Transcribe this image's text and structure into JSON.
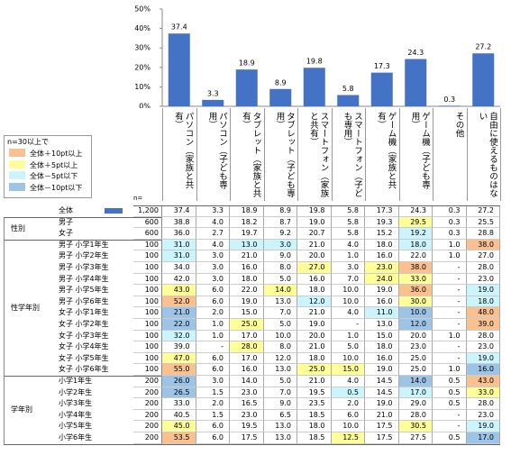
{
  "chart_data": {
    "type": "bar",
    "categories": [
      "パソコン（家族と共有）",
      "パソコン（子ども専用）",
      "タブレット（家族と共有）",
      "タブレット（子ども専用）",
      "スマートフォン（家族と共有）",
      "スマートフォン（子ども専用）",
      "ゲーム機（家族と共有）",
      "ゲーム機（子ども専用）",
      "その他",
      "自由に使えるものはない"
    ],
    "values": [
      37.4,
      3.3,
      18.9,
      8.9,
      19.8,
      5.8,
      17.3,
      24.3,
      0.3,
      27.2
    ],
    "color": "#4472c4",
    "ylim": [
      0,
      50
    ],
    "yticks": [
      {
        "value": 0,
        "label": "0%"
      },
      {
        "value": 10,
        "label": "10%"
      },
      {
        "value": 20,
        "label": "20%"
      },
      {
        "value": 30,
        "label": "30%"
      },
      {
        "value": 40,
        "label": "40%"
      },
      {
        "value": 50,
        "label": "50%"
      }
    ]
  },
  "legend": {
    "title": "n=30以上で",
    "items": [
      {
        "label": "全体＋10pt以上",
        "color": "#fac090"
      },
      {
        "label": "全体＋5pt以上",
        "color": "#ffff99"
      },
      {
        "label": "全体－5pt以下",
        "color": "#ccf4fc"
      },
      {
        "label": "全体－10pt以下",
        "color": "#9dc3e6"
      }
    ]
  },
  "table": {
    "n_header": "n=",
    "total": {
      "label": "全体",
      "n": "1,200",
      "cells": [
        "37.4",
        "3.3",
        "18.9",
        "8.9",
        "19.8",
        "5.8",
        "17.3",
        "24.3",
        "0.3",
        "27.2"
      ]
    },
    "groups": [
      {
        "name": "性別",
        "rows": [
          {
            "label": "男子",
            "n": "600",
            "cells": [
              "38.8",
              "4.0",
              "18.2",
              "8.7",
              "19.0",
              "5.8",
              "19.3",
              "29.5",
              "0.3",
              "25.5"
            ]
          },
          {
            "label": "女子",
            "n": "600",
            "cells": [
              "36.0",
              "2.7",
              "19.7",
              "9.2",
              "20.7",
              "5.8",
              "15.2",
              "19.2",
              "0.3",
              "28.8"
            ]
          }
        ]
      },
      {
        "name": "性学年別",
        "rows": [
          {
            "label": "男子 小学1年生",
            "n": "100",
            "cells": [
              "31.0",
              "4.0",
              "13.0",
              "3.0",
              "21.0",
              "4.0",
              "18.0",
              "18.0",
              "1.0",
              "38.0"
            ]
          },
          {
            "label": "男子 小学2年生",
            "n": "100",
            "cells": [
              "31.0",
              "3.0",
              "21.0",
              "9.0",
              "20.0",
              "1.0",
              "16.0",
              "22.0",
              "1.0",
              "27.0"
            ]
          },
          {
            "label": "男子 小学3年生",
            "n": "100",
            "cells": [
              "34.0",
              "3.0",
              "16.0",
              "8.0",
              "27.0",
              "3.0",
              "23.0",
              "38.0",
              "-",
              "28.0"
            ]
          },
          {
            "label": "男子 小学4年生",
            "n": "100",
            "cells": [
              "42.0",
              "3.0",
              "18.0",
              "5.0",
              "16.0",
              "7.0",
              "24.0",
              "33.0",
              "-",
              "23.0"
            ]
          },
          {
            "label": "男子 小学5年生",
            "n": "100",
            "cells": [
              "43.0",
              "6.0",
              "22.0",
              "14.0",
              "18.0",
              "10.0",
              "19.0",
              "36.0",
              "-",
              "19.0"
            ]
          },
          {
            "label": "男子 小学6年生",
            "n": "100",
            "cells": [
              "52.0",
              "6.0",
              "19.0",
              "13.0",
              "12.0",
              "10.0",
              "16.0",
              "30.0",
              "-",
              "18.0"
            ]
          },
          {
            "label": "女子 小学1年生",
            "n": "100",
            "cells": [
              "21.0",
              "2.0",
              "15.0",
              "7.0",
              "21.0",
              "4.0",
              "11.0",
              "10.0",
              "-",
              "48.0"
            ]
          },
          {
            "label": "女子 小学2年生",
            "n": "100",
            "cells": [
              "22.0",
              "1.0",
              "25.0",
              "5.0",
              "19.0",
              "-",
              "13.0",
              "12.0",
              "-",
              "39.0"
            ]
          },
          {
            "label": "女子 小学3年生",
            "n": "100",
            "cells": [
              "32.0",
              "1.0",
              "17.0",
              "10.0",
              "20.0",
              "1.0",
              "15.0",
              "20.0",
              "1.0",
              "28.0"
            ]
          },
          {
            "label": "女子 小学4年生",
            "n": "100",
            "cells": [
              "39.0",
              "-",
              "28.0",
              "8.0",
              "21.0",
              "5.0",
              "18.0",
              "23.0",
              "-",
              "23.0"
            ]
          },
          {
            "label": "女子 小学5年生",
            "n": "100",
            "cells": [
              "47.0",
              "6.0",
              "17.0",
              "12.0",
              "18.0",
              "10.0",
              "16.0",
              "25.0",
              "-",
              "19.0"
            ]
          },
          {
            "label": "女子 小学6年生",
            "n": "100",
            "cells": [
              "55.0",
              "6.0",
              "16.0",
              "13.0",
              "25.0",
              "15.0",
              "19.0",
              "25.0",
              "1.0",
              "16.0"
            ]
          }
        ]
      },
      {
        "name": "学年別",
        "rows": [
          {
            "label": "小学1年生",
            "n": "200",
            "cells": [
              "26.0",
              "3.0",
              "14.0",
              "5.0",
              "21.0",
              "4.0",
              "14.5",
              "14.0",
              "0.5",
              "43.0"
            ]
          },
          {
            "label": "小学2年生",
            "n": "200",
            "cells": [
              "26.5",
              "1.5",
              "23.0",
              "7.0",
              "19.5",
              "0.5",
              "14.5",
              "17.0",
              "0.5",
              "33.0"
            ]
          },
          {
            "label": "小学3年生",
            "n": "200",
            "cells": [
              "33.0",
              "2.0",
              "16.5",
              "9.0",
              "23.5",
              "2.0",
              "19.0",
              "29.0",
              "0.5",
              "28.0"
            ]
          },
          {
            "label": "小学4年生",
            "n": "200",
            "cells": [
              "40.5",
              "1.5",
              "23.0",
              "6.5",
              "18.5",
              "6.0",
              "21.0",
              "28.0",
              "-",
              "23.0"
            ]
          },
          {
            "label": "小学5年生",
            "n": "200",
            "cells": [
              "45.0",
              "6.0",
              "19.5",
              "13.0",
              "18.0",
              "10.0",
              "17.5",
              "30.5",
              "-",
              "19.0"
            ]
          },
          {
            "label": "小学6年生",
            "n": "200",
            "cells": [
              "53.5",
              "6.0",
              "17.5",
              "13.0",
              "18.5",
              "12.5",
              "17.5",
              "27.5",
              "0.5",
              "17.0"
            ]
          }
        ]
      }
    ]
  }
}
